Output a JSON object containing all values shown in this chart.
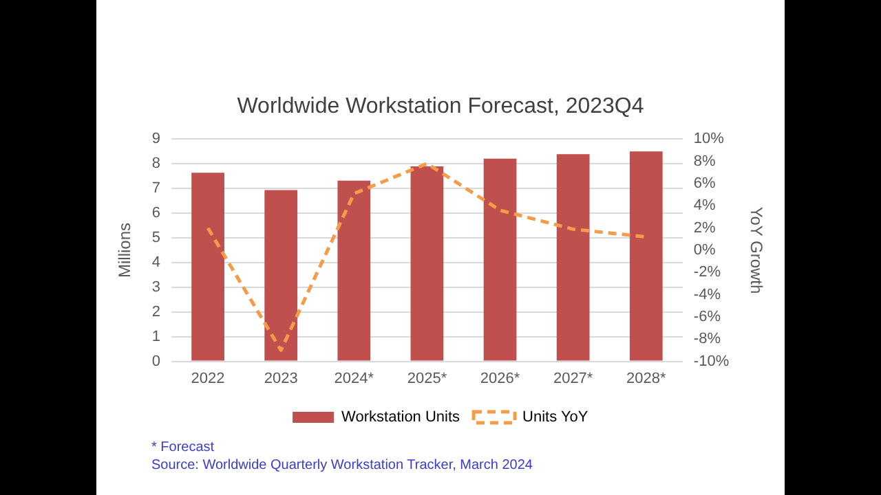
{
  "chart_data": {
    "type": "bar",
    "title": "Worldwide Workstation Forecast, 2023Q4",
    "categories": [
      "2022",
      "2023",
      "2024*",
      "2025*",
      "2026*",
      "2027*",
      "2028*"
    ],
    "series": [
      {
        "name": "Workstation Units",
        "color": "#c0504d",
        "values": [
          7.64,
          6.94,
          7.32,
          7.9,
          8.21,
          8.39,
          8.5
        ]
      },
      {
        "name": "Units YoY",
        "type": "line",
        "axis": "y2",
        "color": "#f39c4a",
        "line_style": "dashed",
        "marker": "none",
        "values": [
          2.0,
          -9.0,
          5.1,
          7.8,
          3.6,
          1.9,
          1.2
        ]
      }
    ],
    "ylabel": "Millions",
    "y2label": "YoY Growth",
    "ylim": [
      0,
      9
    ],
    "yticks": [
      0,
      1,
      2,
      3,
      4,
      5,
      6,
      7,
      8,
      9
    ],
    "y2lim": [
      -10,
      10
    ],
    "y2ticks": [
      {
        "value": -10,
        "label": "-10%"
      },
      {
        "value": -8,
        "label": "-8%"
      },
      {
        "value": -6,
        "label": "-6%"
      },
      {
        "value": -4,
        "label": "-4%"
      },
      {
        "value": -2,
        "label": "-2%"
      },
      {
        "value": 0,
        "label": "0%"
      },
      {
        "value": 2,
        "label": "2%"
      },
      {
        "value": 4,
        "label": "4%"
      },
      {
        "value": 6,
        "label": "6%"
      },
      {
        "value": 8,
        "label": "8%"
      },
      {
        "value": 10,
        "label": "10%"
      }
    ],
    "grid": "y",
    "legend": "bottom",
    "annotations": [
      "* Forecast",
      "Source:  Worldwide Quarterly Workstation Tracker, March 2024"
    ]
  }
}
